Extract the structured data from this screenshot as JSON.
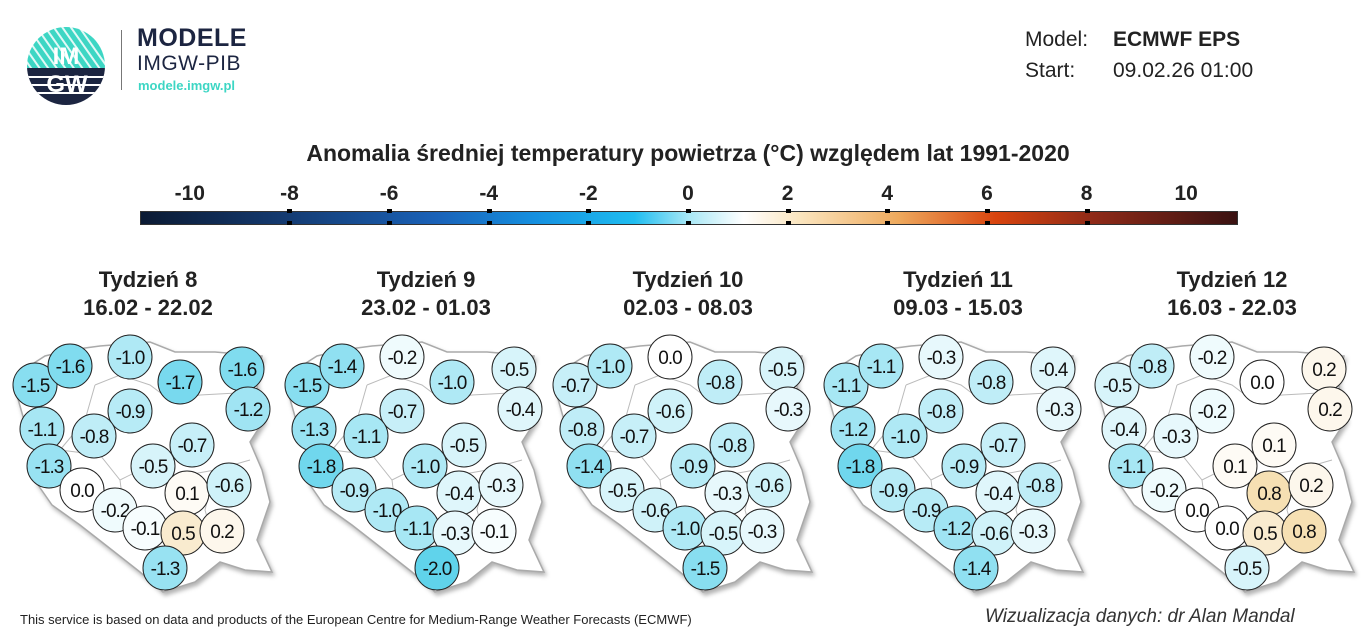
{
  "logo": {
    "emblem_text_top": "IM",
    "emblem_text_bottom": "GW",
    "title": "MODELE",
    "subtitle": "IMGW-PIB",
    "url": "modele.imgw.pl"
  },
  "meta": {
    "model_label": "Model:",
    "model_value": "ECMWF EPS",
    "start_label": "Start:",
    "start_value": "09.02.26 01:00"
  },
  "title": "Anomalia średniej temperatury powietrza (°C) względem lat 1991-2020",
  "colorbar": {
    "ticks": [
      "-10",
      "-8",
      "-6",
      "-4",
      "-2",
      "0",
      "2",
      "4",
      "6",
      "8",
      "10"
    ],
    "range": [
      -11,
      11
    ],
    "colors": {
      "cold_extreme": "#0b1a33",
      "cold": "#1fbdf0",
      "neutral": "#ffffff",
      "warm": "#eeaa5e",
      "warm_extreme": "#3a1212"
    }
  },
  "weeks": [
    {
      "title": "Tydzień 8",
      "dates": "16.02 - 22.02",
      "values": [
        "-1.5",
        "-1.6",
        "-1.0",
        "-1.7",
        "-1.6",
        "-1.2",
        "-0.9",
        "-1.1",
        "-0.8",
        "-0.7",
        "-0.5",
        "-1.3",
        "0.0",
        "-0.2",
        "0.1",
        "-0.6",
        "-0.1",
        "0.5",
        "0.2",
        "-1.3"
      ]
    },
    {
      "title": "Tydzień 9",
      "dates": "23.02 - 01.03",
      "values": [
        "-1.5",
        "-1.4",
        "-0.2",
        "-1.0",
        "-0.5",
        "-0.4",
        "-0.7",
        "-1.3",
        "-1.1",
        "-0.5",
        "-1.0",
        "-1.8",
        "-0.9",
        "-1.0",
        "-0.4",
        "-0.3",
        "-1.1",
        "-0.3",
        "-0.1",
        "-2.0"
      ]
    },
    {
      "title": "Tydzień 10",
      "dates": "02.03 - 08.03",
      "values": [
        "-0.7",
        "-1.0",
        "0.0",
        "-0.8",
        "-0.5",
        "-0.3",
        "-0.6",
        "-0.8",
        "-0.7",
        "-0.8",
        "-0.9",
        "-1.4",
        "-0.5",
        "-0.6",
        "-0.3",
        "-0.6",
        "-1.0",
        "-0.5",
        "-0.3",
        "-1.5"
      ]
    },
    {
      "title": "Tydzień 11",
      "dates": "09.03 - 15.03",
      "values": [
        "-1.1",
        "-1.1",
        "-0.3",
        "-0.8",
        "-0.4",
        "-0.3",
        "-0.8",
        "-1.2",
        "-1.0",
        "-0.7",
        "-0.9",
        "-1.8",
        "-0.9",
        "-0.9",
        "-0.4",
        "-0.8",
        "-1.2",
        "-0.6",
        "-0.3",
        "-1.4"
      ]
    },
    {
      "title": "Tydzień 12",
      "dates": "16.03 - 22.03",
      "values": [
        "-0.5",
        "-0.8",
        "-0.2",
        "0.0",
        "0.2",
        "0.2",
        "-0.2",
        "-0.4",
        "-0.3",
        "0.1",
        "0.1",
        "-1.1",
        "-0.2",
        "0.0",
        "0.8",
        "0.2",
        "0.0",
        "0.5",
        "0.8",
        "-0.5"
      ]
    }
  ],
  "footer": {
    "left": "This service is based on data and products of the European Centre for Medium-Range Weather Forecasts (ECMWF)",
    "right": "Wizualizacja danych: dr Alan Mandal"
  }
}
